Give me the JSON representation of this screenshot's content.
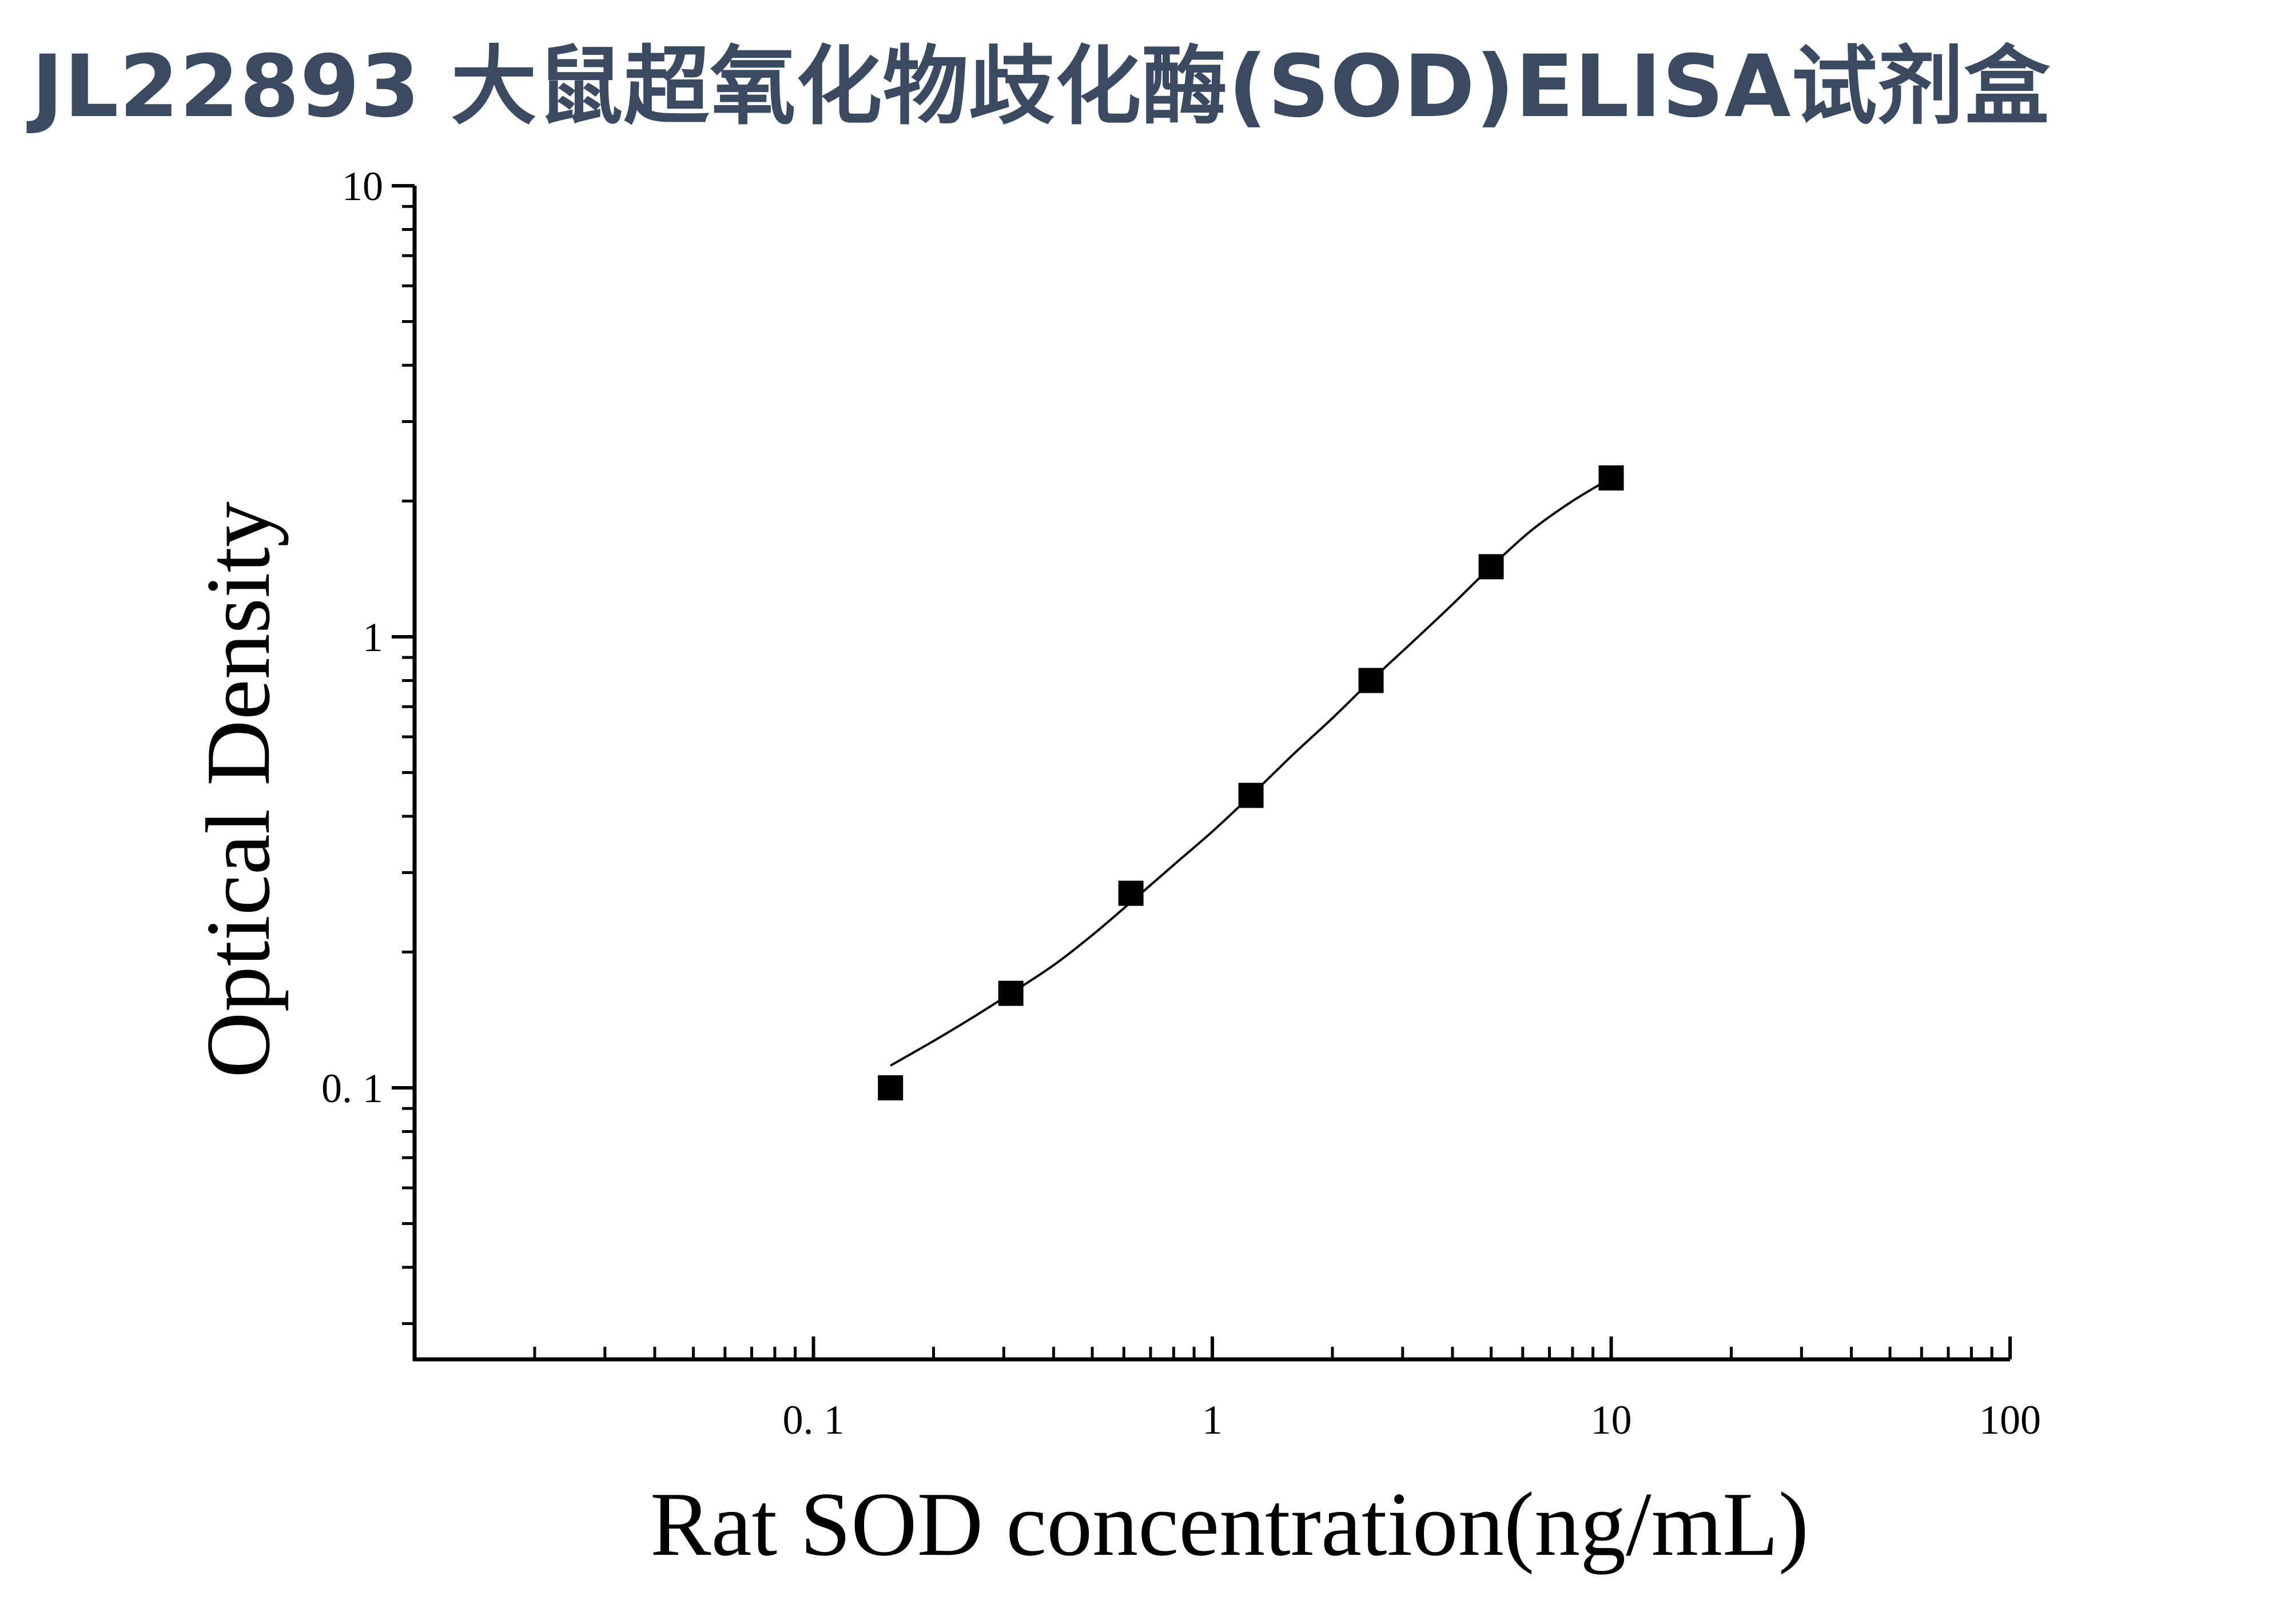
{
  "chart_data": {
    "type": "scatter",
    "title": "JL22893 大鼠超氧化物歧化酶(SOD)ELISA试剂盒",
    "xlabel": "Rat SOD concentration(ng/mL)",
    "ylabel": "Optical Density",
    "x_scale": "log",
    "y_scale": "log",
    "xlim": [
      0.01,
      100
    ],
    "ylim": [
      0.025,
      10
    ],
    "x_ticks": [
      {
        "value": 0.1,
        "label": "0. 1"
      },
      {
        "value": 1,
        "label": "1"
      },
      {
        "value": 10,
        "label": "10"
      },
      {
        "value": 100,
        "label": "100"
      }
    ],
    "y_ticks": [
      {
        "value": 0.1,
        "label": "0. 1"
      },
      {
        "value": 1,
        "label": "1"
      },
      {
        "value": 10,
        "label": "10"
      }
    ],
    "grid": false,
    "series": [
      {
        "marker": "square",
        "color": "#000000",
        "x": [
          0.156,
          0.3125,
          0.625,
          1.25,
          2.5,
          5,
          10
        ],
        "y": [
          0.1,
          0.162,
          0.27,
          0.445,
          0.8,
          1.43,
          2.25
        ]
      }
    ],
    "fit_curve": {
      "color": "#000000",
      "x": [
        0.156,
        0.2,
        0.25,
        0.3125,
        0.4,
        0.5,
        0.625,
        0.8,
        1.0,
        1.25,
        1.6,
        2.0,
        2.5,
        3.2,
        4.0,
        5.0,
        6.3,
        8.0,
        10
      ],
      "y": [
        0.112,
        0.127,
        0.143,
        0.162,
        0.187,
        0.218,
        0.258,
        0.312,
        0.37,
        0.445,
        0.55,
        0.66,
        0.8,
        0.98,
        1.18,
        1.43,
        1.72,
        2.0,
        2.25
      ]
    }
  }
}
